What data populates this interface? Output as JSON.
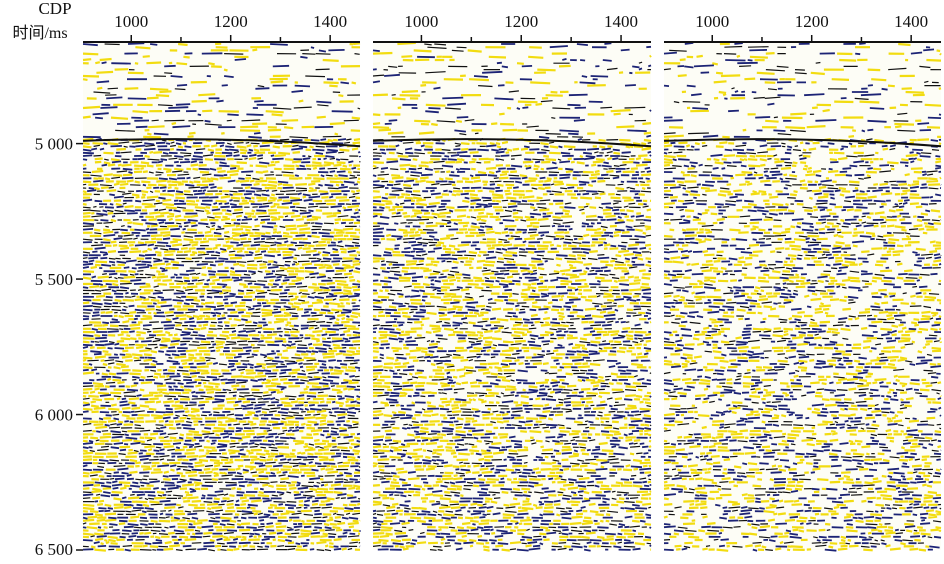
{
  "figure": {
    "x_label": "CDP",
    "y_label": "时间/ms",
    "xlim": [
      903,
      1460
    ],
    "xticks": [
      1000,
      1200,
      1400
    ],
    "xminor": [
      1100,
      1300
    ],
    "ylim": [
      4625,
      6500
    ],
    "yticks": [
      {
        "value": 5000,
        "label": "5 000"
      },
      {
        "value": 5500,
        "label": "5 500"
      },
      {
        "value": 6000,
        "label": "6 000"
      },
      {
        "value": 6500,
        "label": "6 500"
      }
    ],
    "panels": [
      {
        "name": null
      },
      {
        "name": null
      },
      {
        "name": null
      }
    ]
  }
}
